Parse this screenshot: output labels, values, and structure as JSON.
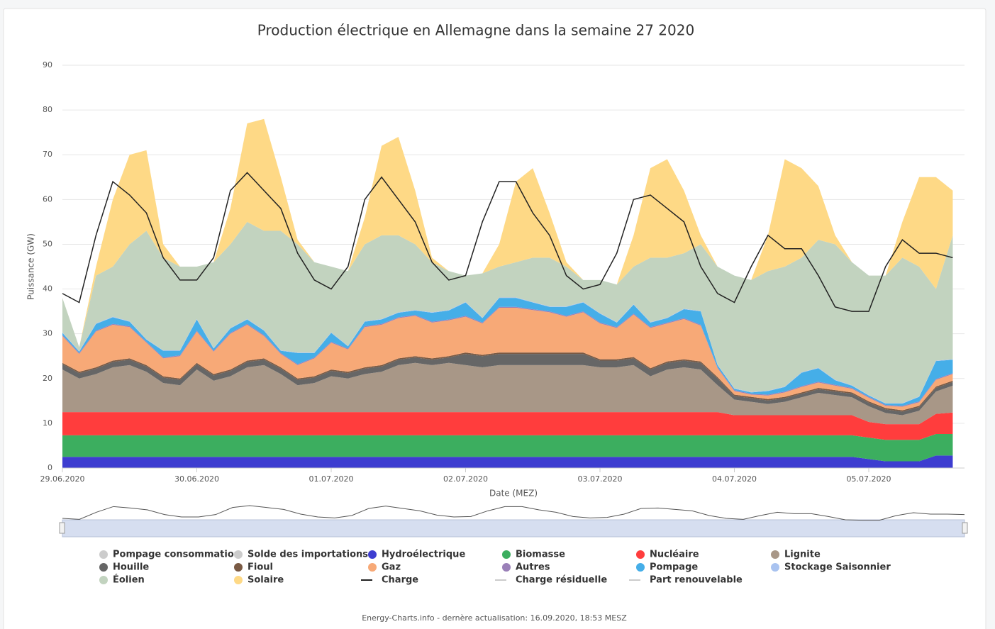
{
  "chart_data": {
    "type": "area",
    "title": "Production électrique en Allemagne dans la semaine 27 2020",
    "ylabel": "Puissance (GW)",
    "xlabel": "Date (MEZ)",
    "footer": "Energy-Charts.info - dernère actualisation: 16.09.2020, 18:53 MESZ",
    "stacked": true,
    "grid": true,
    "categories": [
      "29.06.2020",
      null,
      null,
      null,
      null,
      null,
      null,
      null,
      "30.06.2020",
      null,
      null,
      null,
      null,
      null,
      null,
      null,
      "01.07.2020",
      null,
      null,
      null,
      null,
      null,
      null,
      null,
      "02.07.2020",
      null,
      null,
      null,
      null,
      null,
      null,
      null,
      "03.07.2020",
      null,
      null,
      null,
      null,
      null,
      null,
      null,
      "04.07.2020",
      null,
      null,
      null,
      null,
      null,
      null,
      null,
      "05.07.2020",
      null,
      null,
      null,
      null,
      null
    ],
    "ylim": [
      0,
      90
    ],
    "yticks": [
      0,
      10,
      20,
      30,
      40,
      50,
      60,
      70,
      80,
      90
    ],
    "series": [
      {
        "name": "Pompage consommation",
        "color": "#cccccc",
        "visible": false,
        "marker": "circle"
      },
      {
        "name": "Solde des importations",
        "color": "#cccccc",
        "visible": false,
        "marker": "circle"
      },
      {
        "name": "Hydroélectrique",
        "color": "#3d3dd0",
        "marker": "circle",
        "values": [
          2.5,
          2.5,
          2.5,
          2.5,
          2.5,
          2.5,
          2.5,
          2.5,
          2.5,
          2.5,
          2.5,
          2.5,
          2.5,
          2.5,
          2.5,
          2.5,
          2.5,
          2.5,
          2.5,
          2.5,
          2.5,
          2.5,
          2.5,
          2.5,
          2.5,
          2.5,
          2.5,
          2.5,
          2.5,
          2.5,
          2.5,
          2.5,
          2.5,
          2.5,
          2.5,
          2.5,
          2.5,
          2.5,
          2.5,
          2.5,
          2.5,
          2.5,
          2.5,
          2.5,
          2.5,
          2.5,
          2.5,
          2.5,
          2,
          1.5,
          1.5,
          1.5,
          2.8,
          2.8
        ]
      },
      {
        "name": "Biomasse",
        "color": "#3cae5f",
        "marker": "circle",
        "values": [
          4.8,
          4.8,
          4.8,
          4.8,
          4.8,
          4.8,
          4.8,
          4.8,
          4.8,
          4.8,
          4.8,
          4.8,
          4.8,
          4.8,
          4.8,
          4.8,
          4.8,
          4.8,
          4.8,
          4.8,
          4.8,
          4.8,
          4.8,
          4.8,
          4.8,
          4.8,
          4.8,
          4.8,
          4.8,
          4.8,
          4.8,
          4.8,
          4.8,
          4.8,
          4.8,
          4.8,
          4.8,
          4.8,
          4.8,
          4.8,
          4.8,
          4.8,
          4.8,
          4.8,
          4.8,
          4.8,
          4.8,
          4.8,
          4.8,
          4.8,
          4.8,
          4.8,
          4.8,
          4.8
        ]
      },
      {
        "name": "Nucléaire",
        "color": "#ff3d3d",
        "marker": "circle",
        "values": [
          5.2,
          5.2,
          5.2,
          5.2,
          5.2,
          5.2,
          5.2,
          5.2,
          5.2,
          5.2,
          5.2,
          5.2,
          5.2,
          5.2,
          5.2,
          5.2,
          5.2,
          5.2,
          5.2,
          5.2,
          5.2,
          5.2,
          5.2,
          5.2,
          5.2,
          5.2,
          5.2,
          5.2,
          5.2,
          5.2,
          5.2,
          5.2,
          5.2,
          5.2,
          5.2,
          5.2,
          5.2,
          5.2,
          5.2,
          5.2,
          4.5,
          4.5,
          4.5,
          4.5,
          4.5,
          4.5,
          4.5,
          4.5,
          3.5,
          3.5,
          3.5,
          3.5,
          4.5,
          4.8
        ]
      },
      {
        "name": "Lignite",
        "color": "#a89787",
        "marker": "circle",
        "values": [
          9.5,
          7.5,
          8.5,
          10,
          10.5,
          9,
          6.5,
          6,
          9.5,
          7,
          8,
          10,
          10.5,
          8.5,
          6,
          6.5,
          8,
          7.5,
          8.5,
          9,
          10.5,
          11,
          10.5,
          11,
          10.5,
          10,
          10.5,
          10.5,
          10.5,
          10.5,
          10.5,
          10.5,
          10,
          10,
          10.5,
          8,
          9.5,
          10,
          9.5,
          6,
          3.5,
          3,
          2.5,
          3,
          4,
          5,
          4.5,
          4,
          3.5,
          2.5,
          2,
          3,
          5,
          6
        ]
      },
      {
        "name": "Houille",
        "color": "#666666",
        "marker": "circle",
        "values": [
          1.2,
          1.2,
          1.2,
          1.2,
          1.2,
          1.2,
          1.2,
          1.2,
          1.2,
          1.2,
          1.2,
          1.2,
          1.2,
          1.2,
          1.2,
          1.2,
          1.2,
          1.2,
          1.2,
          1.2,
          1.2,
          1.2,
          1.2,
          1.2,
          2.5,
          2.5,
          2.5,
          2.5,
          2.5,
          2.5,
          2.5,
          2.5,
          1.5,
          1.5,
          1.5,
          1.5,
          1.5,
          1.5,
          1.5,
          1.5,
          0.8,
          0.8,
          0.8,
          0.8,
          0.8,
          0.8,
          0.8,
          0.8,
          0.8,
          0.8,
          0.8,
          0.8,
          0.8,
          0.8
        ]
      },
      {
        "name": "Fioul",
        "color": "#7a5a44",
        "marker": "circle",
        "values": [
          0.3,
          0.3,
          0.3,
          0.3,
          0.3,
          0.3,
          0.3,
          0.3,
          0.3,
          0.3,
          0.3,
          0.3,
          0.3,
          0.3,
          0.3,
          0.3,
          0.3,
          0.3,
          0.3,
          0.3,
          0.3,
          0.3,
          0.3,
          0.3,
          0.3,
          0.3,
          0.3,
          0.3,
          0.3,
          0.3,
          0.3,
          0.3,
          0.3,
          0.3,
          0.3,
          0.3,
          0.3,
          0.3,
          0.3,
          0.3,
          0.3,
          0.3,
          0.3,
          0.3,
          0.3,
          0.3,
          0.3,
          0.3,
          0.3,
          0.3,
          0.3,
          0.3,
          0.3,
          0.3
        ]
      },
      {
        "name": "Gaz",
        "color": "#f7a977",
        "marker": "circle",
        "values": [
          6,
          4,
          8,
          8,
          7,
          5,
          4,
          5,
          7,
          5,
          8,
          8,
          5,
          3,
          3,
          4,
          6,
          5,
          9,
          9,
          9,
          9,
          8,
          8,
          8,
          7,
          10,
          10,
          9.5,
          9,
          8,
          9,
          8,
          7,
          9.5,
          9,
          8.5,
          9,
          8,
          2,
          0.8,
          0.5,
          0.8,
          1,
          1.2,
          1.2,
          1,
          0.8,
          0.8,
          0.5,
          0.8,
          0.8,
          1.5,
          1.5
        ]
      },
      {
        "name": "Autres",
        "color": "#9a80b8",
        "marker": "circle",
        "values": [
          0.2,
          0.2,
          0.2,
          0.2,
          0.2,
          0.2,
          0.2,
          0.2,
          0.2,
          0.2,
          0.2,
          0.2,
          0.2,
          0.2,
          0.2,
          0.2,
          0.2,
          0.2,
          0.2,
          0.2,
          0.2,
          0.2,
          0.2,
          0.2,
          0.2,
          0.2,
          0.2,
          0.2,
          0.2,
          0.2,
          0.2,
          0.2,
          0.2,
          0.2,
          0.2,
          0.2,
          0.2,
          0.2,
          0.2,
          0.2,
          0.2,
          0.2,
          0.2,
          0.2,
          0.2,
          0.2,
          0.2,
          0.2,
          0.2,
          0.2,
          0.2,
          0.2,
          0.2,
          0.2
        ]
      },
      {
        "name": "Pompage",
        "color": "#45aee8",
        "marker": "circle",
        "values": [
          0.5,
          0.3,
          1.5,
          1.5,
          1,
          0.5,
          1.5,
          1,
          2.5,
          0.5,
          1,
          1,
          1,
          0.5,
          2.5,
          1,
          2,
          0.5,
          1,
          1,
          1,
          1,
          2,
          2,
          3,
          1,
          2,
          2,
          1.5,
          1,
          2,
          2,
          2,
          1,
          2,
          1,
          1,
          2,
          3,
          0.5,
          0.3,
          0.3,
          0.8,
          1,
          3,
          3,
          1,
          0.5,
          0.3,
          0.3,
          0.5,
          1,
          4,
          3
        ]
      },
      {
        "name": "Stockage Saisonnier",
        "color": "#a9c3f0",
        "marker": "circle",
        "values": [
          0.1,
          0.1,
          0.1,
          0.1,
          0.1,
          0.1,
          0.1,
          0.1,
          0.1,
          0.1,
          0.1,
          0.1,
          0.1,
          0.1,
          0.1,
          0.1,
          0.1,
          0.1,
          0.1,
          0.1,
          0.1,
          0.1,
          0.1,
          0.1,
          0.1,
          0.1,
          0.1,
          0.1,
          0.1,
          0.1,
          0.1,
          0.1,
          0.1,
          0.1,
          0.1,
          0.1,
          0.1,
          0.1,
          0.1,
          0.1,
          0.1,
          0.1,
          0.1,
          0.1,
          0.1,
          0.1,
          0.1,
          0.1,
          0.1,
          0.1,
          0.1,
          0.1,
          0.1,
          0.1
        ]
      },
      {
        "name": "Éolien",
        "color": "#c2d3bf",
        "marker": "circle",
        "values": [
          7.7,
          0.9,
          10.7,
          11.2,
          17.2,
          24.2,
          20.7,
          18.7,
          11.7,
          19.2,
          18.7,
          21.7,
          22.2,
          26.7,
          24.2,
          20.2,
          14.7,
          16.7,
          17.2,
          18.7,
          17.2,
          14.7,
          11.2,
          8.7,
          5.9,
          9.9,
          6.9,
          7.9,
          9.9,
          10.9,
          8.9,
          4.9,
          7.4,
          8.4,
          8.4,
          14.4,
          13.4,
          12.4,
          14.9,
          21.9,
          25.2,
          25,
          26.7,
          26.8,
          25.6,
          28.6,
          30.3,
          27.5,
          26.7,
          28.5,
          32.5,
          29,
          16,
          27.7
        ]
      },
      {
        "name": "Solaire",
        "color": "#fed986",
        "marker": "circle",
        "values": [
          0,
          0,
          2,
          15,
          20,
          18,
          3,
          0,
          0,
          0,
          8,
          22,
          25,
          12,
          1,
          0,
          0,
          0,
          6,
          20,
          22,
          12,
          1,
          0,
          0,
          0,
          5,
          18,
          20,
          10,
          1,
          0,
          0,
          0,
          7,
          20,
          22,
          14,
          2,
          0,
          0,
          0,
          8,
          24,
          20,
          12,
          2,
          0,
          0,
          0,
          8,
          20,
          25,
          10
        ]
      },
      {
        "name": "Charge",
        "color": "#222222",
        "marker": "line",
        "kind": "line",
        "values": [
          39,
          37,
          52,
          64,
          61,
          57,
          47,
          42,
          42,
          47,
          62,
          66,
          62,
          58,
          48,
          42,
          40,
          45,
          60,
          65,
          60,
          55,
          46,
          42,
          43,
          55,
          64,
          64,
          57,
          52,
          43,
          40,
          41,
          48,
          60,
          61,
          58,
          55,
          45,
          39,
          37,
          45,
          52,
          49,
          49,
          43,
          36,
          35,
          35,
          45,
          51,
          48,
          48,
          47
        ]
      },
      {
        "name": "Charge résiduelle",
        "color": "#cccccc",
        "visible": false,
        "marker": "line"
      },
      {
        "name": "Part renouvelable",
        "color": "#cccccc",
        "visible": false,
        "marker": "line"
      }
    ]
  }
}
